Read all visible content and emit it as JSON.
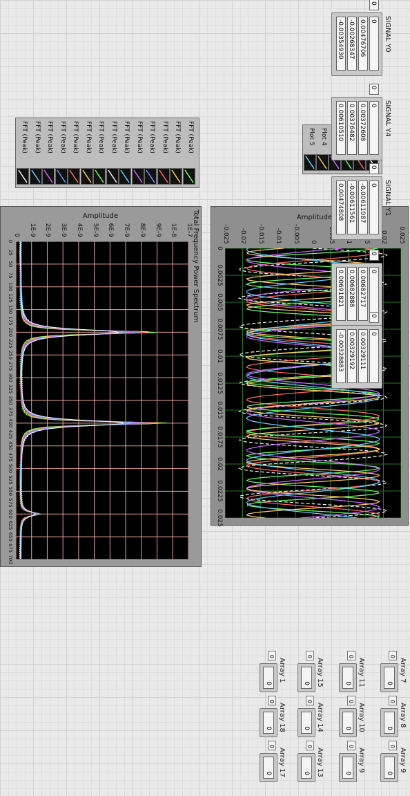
{
  "arrays": [
    {
      "label": "Array 7",
      "index": "0",
      "values": [
        "0",
        "0"
      ]
    },
    {
      "label": "Array 8",
      "index": "0",
      "values": [
        "0",
        "0"
      ]
    },
    {
      "label": "Array 9",
      "index": "0",
      "values": [
        "0",
        "0"
      ]
    },
    {
      "label": "Array 11",
      "index": "0",
      "values": [
        "0",
        "0"
      ]
    },
    {
      "label": "Array 10",
      "index": "0",
      "values": [
        "0",
        "0"
      ]
    },
    {
      "label": "Array 9",
      "index": "0",
      "values": [
        "0",
        "0"
      ]
    },
    {
      "label": "Array 15",
      "index": "0",
      "values": [
        "0",
        "0"
      ]
    },
    {
      "label": "Array 14",
      "index": "0",
      "values": [
        "0",
        "0"
      ]
    },
    {
      "label": "Array 13",
      "index": "0",
      "values": [
        "0",
        "0"
      ]
    },
    {
      "label": "Array 1",
      "index": "0",
      "values": [
        "0",
        "0"
      ]
    },
    {
      "label": "Array 18",
      "index": "0",
      "values": [
        "0",
        "0"
      ]
    },
    {
      "label": "Array 17",
      "index": "0",
      "values": [
        "0",
        "0"
      ]
    }
  ],
  "waveform_chart": {
    "y_axis_label": "Amplitude",
    "y_ticks": [
      "0.025",
      "0.02",
      "0.015",
      "0.01",
      "0.005",
      "0",
      "-0.005",
      "-0.01",
      "-0.015",
      "-0.02",
      "-0.025"
    ],
    "x_ticks": [
      "0",
      "0.0025",
      "0.005",
      "0.0075",
      "0.01",
      "0.0125",
      "0.015",
      "0.0175",
      "0.02",
      "0.0225",
      "0.025"
    ],
    "legend": [
      "Plot 0",
      "Plot 1",
      "Plot 2",
      "Plot 3",
      "Plot 4",
      "Plot 5"
    ],
    "colors": {
      "plot_bg": "#000000",
      "grid": "#1f7a1f",
      "traces": [
        "#f5f5f5",
        "#ff6666",
        "#66ff66",
        "#cc66ff",
        "#ffcc66",
        "#66ccff"
      ]
    }
  },
  "spectrum_chart": {
    "title": "Total Frequency Power Spectrum",
    "y_axis_label": "Amplitude",
    "y_ticks": [
      "1E-7",
      "1E-8",
      "9E-9",
      "8E-9",
      "7E-9",
      "6E-9",
      "5E-9",
      "4E-9",
      "3E-9",
      "2E-9",
      "1E-9",
      "0"
    ],
    "x_ticks": [
      "0",
      "25",
      "50",
      "75",
      "100",
      "125",
      "150",
      "175",
      "200",
      "225",
      "250",
      "275",
      "300",
      "325",
      "350",
      "375",
      "400",
      "425",
      "450",
      "475",
      "500",
      "525",
      "550",
      "575",
      "600",
      "625",
      "650",
      "675",
      "700"
    ],
    "legend": [
      "FFT (Peak)",
      "FFT (Peak)",
      "FFT (Peak)",
      "FFT (Peak)",
      "FFT (Peak)",
      "FFT (Peak)",
      "FFT (Peak)",
      "FFT (Peak)",
      "FFT (Peak)",
      "FFT (Peak)",
      "FFT (Peak)",
      "FFT (Peak)",
      "FFT (Peak)",
      "FFT (Peak)"
    ],
    "colors": {
      "plot_bg": "#000000",
      "grid": "#e8a0a0",
      "traces": [
        "#66ff66",
        "#ffcc66",
        "#ff6666",
        "#6699ff",
        "#cc66ff",
        "#66ccff",
        "#f5f5f5"
      ]
    }
  },
  "signals": [
    {
      "title": "SIGNAL Y0",
      "index": "0",
      "values": [
        "0",
        "0.00476706",
        "-0.00268347",
        "-0.00354930"
      ]
    },
    {
      "title": "SIGNAL Y4",
      "index": "0",
      "values": [
        "0",
        "0.00372608",
        "0.00376482",
        "0.00610510"
      ]
    },
    {
      "title": "SIGNAL Y1",
      "index": "0",
      "values": [
        "0",
        "-0.00611087",
        "-0.00611561",
        "0.00474808"
      ]
    },
    {
      "title": "SIGNAL Y5",
      "index": "0",
      "values": [
        "0",
        "0.00682717",
        "0.00682888",
        "0.00691821"
      ]
    },
    {
      "title": "SIGNAL Y10",
      "index": "0",
      "values": [
        "0",
        "0.00329111",
        "0.00329192",
        "-0.00328883"
      ]
    }
  ]
}
